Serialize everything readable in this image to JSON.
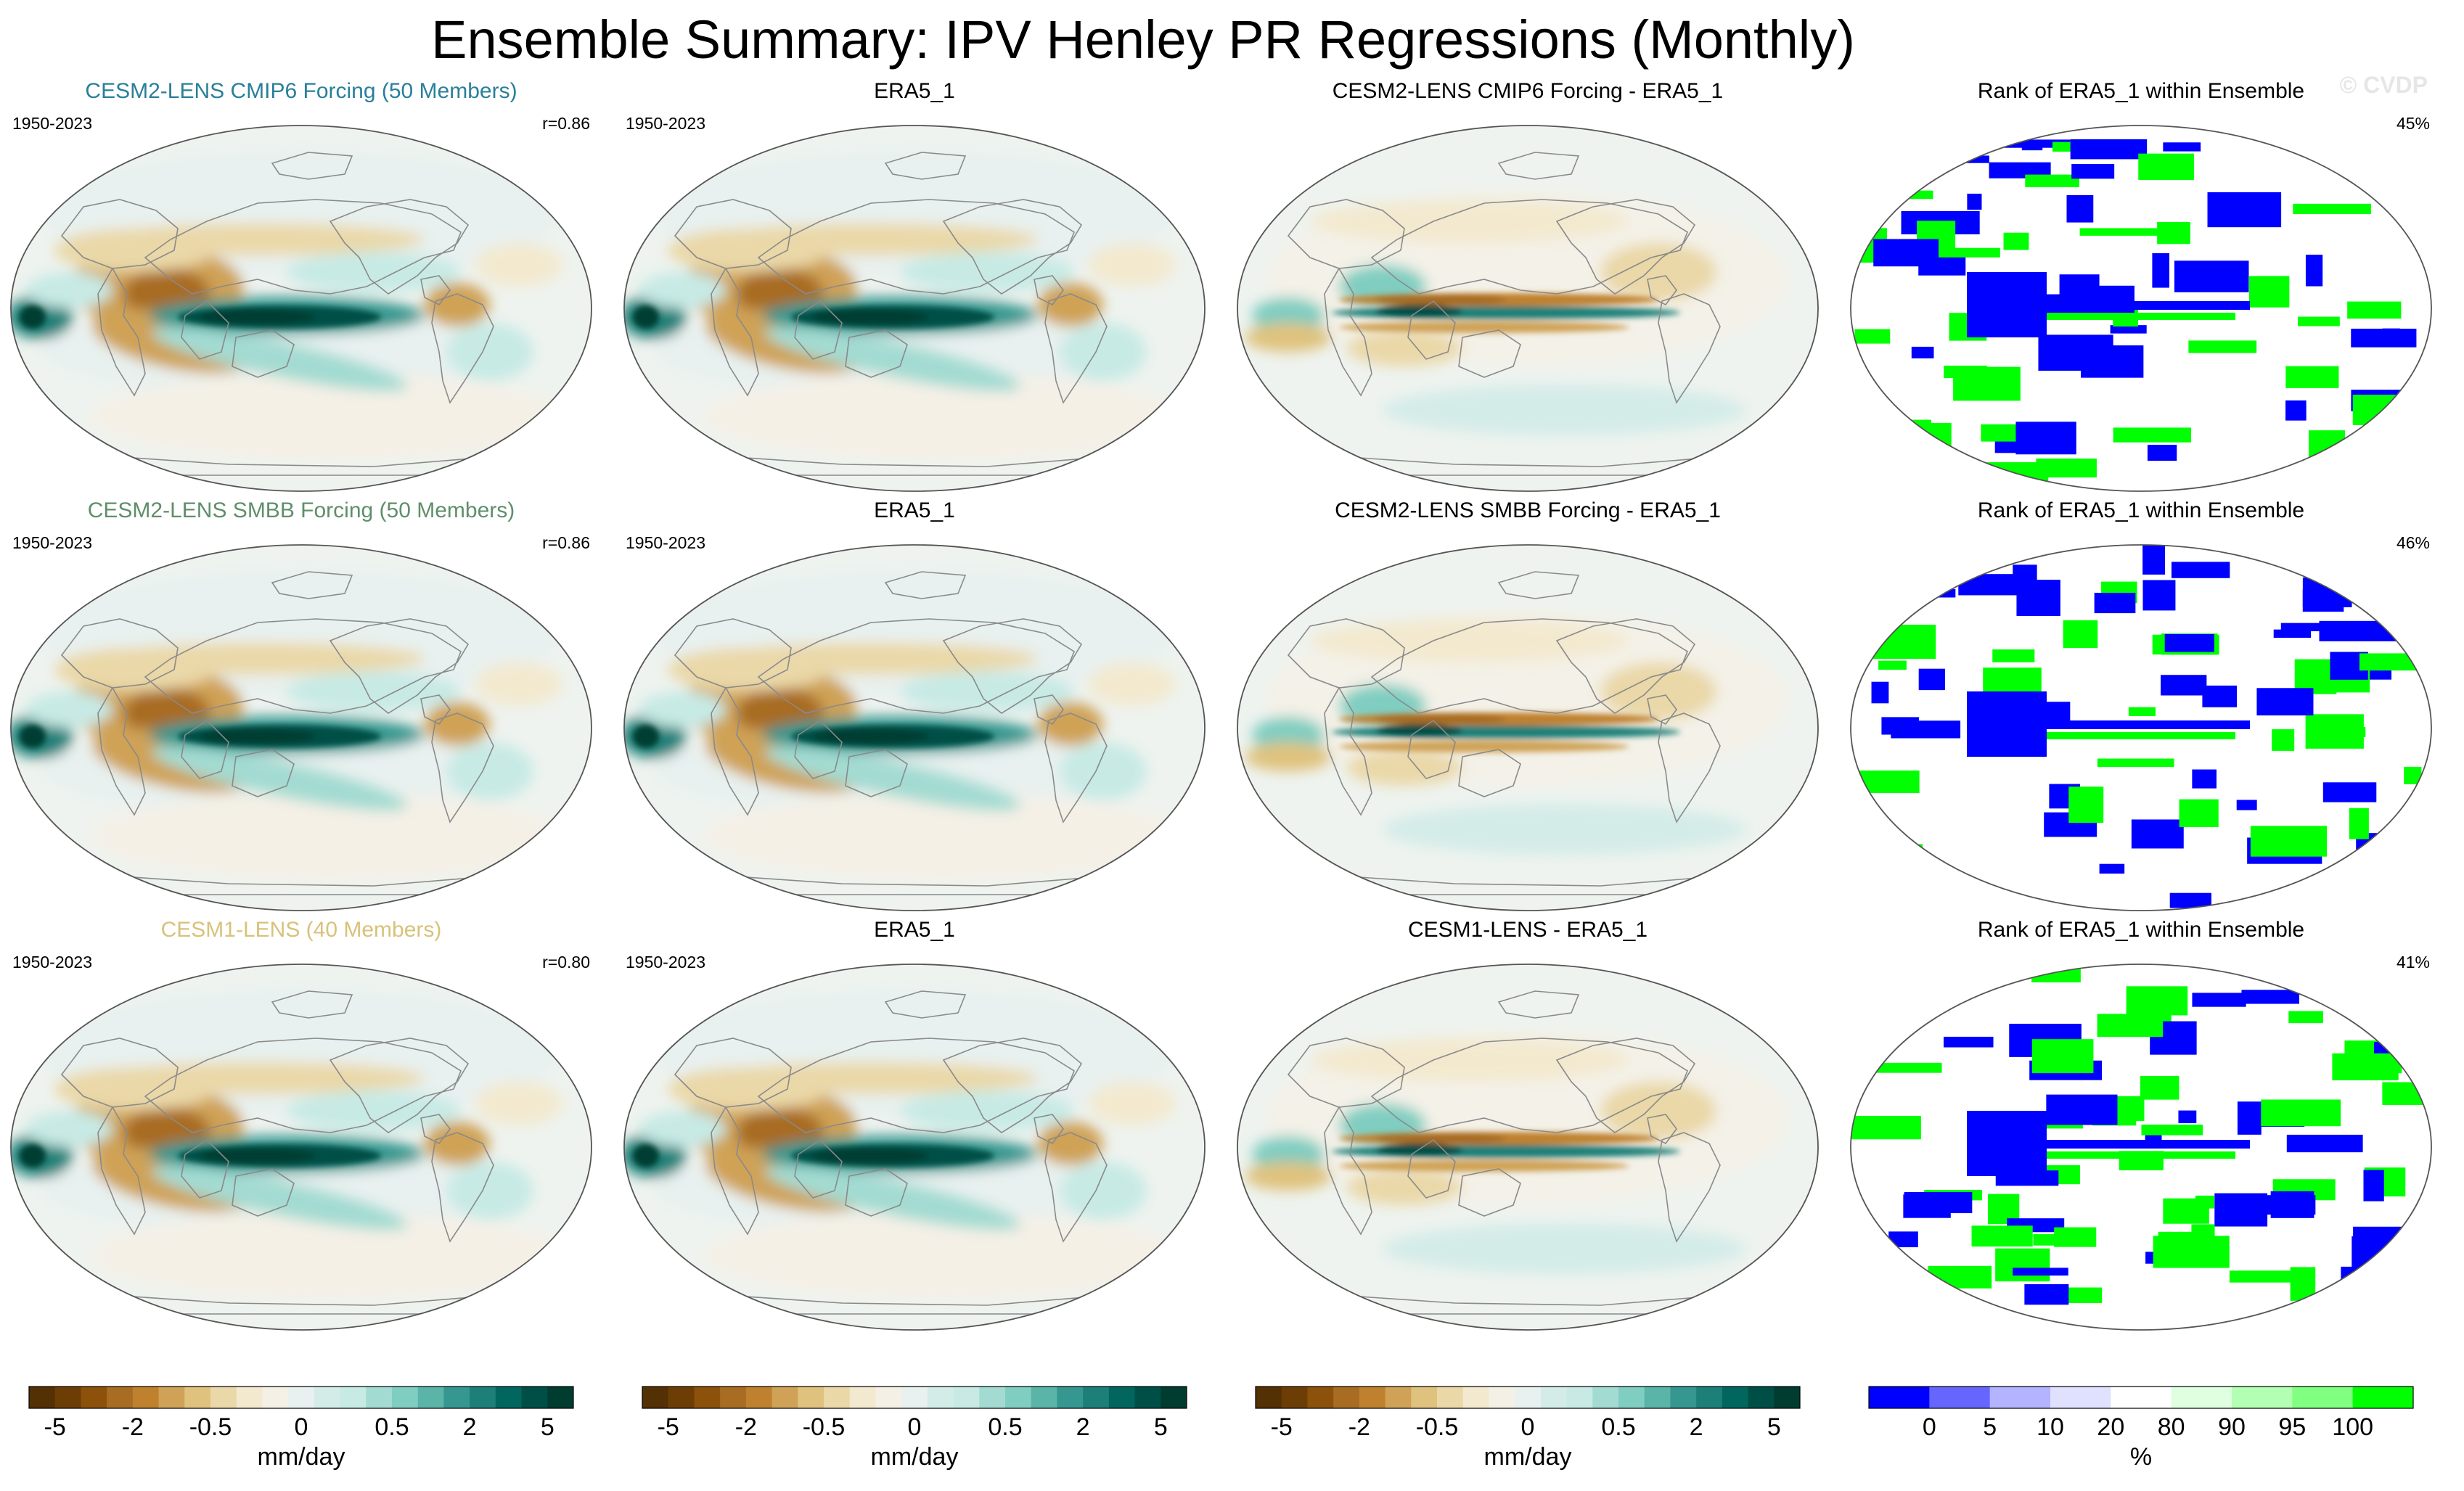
{
  "title": "Ensemble Summary: IPV Henley PR Regressions (Monthly)",
  "watermark": "© CVDP",
  "chart_data": {
    "type": "heatmap",
    "description_kind": "global map panels (Robinson projection), 3 rows x 4 columns",
    "rows": [
      {
        "ensemble_title": "CESM2-LENS CMIP6 Forcing (50 Members)",
        "ensemble_title_color": "#2a7f9a",
        "period": "1950-2023",
        "pattern_correlation": "r=0.86",
        "obs_title": "ERA5_1",
        "obs_period": "1950-2023",
        "diff_title": "CESM2-LENS CMIP6 Forcing - ERA5_1",
        "rank_title": "Rank of ERA5_1 within Ensemble",
        "rank_percent": "45%"
      },
      {
        "ensemble_title": "CESM2-LENS SMBB Forcing (50 Members)",
        "ensemble_title_color": "#5f8f6a",
        "period": "1950-2023",
        "pattern_correlation": "r=0.86",
        "obs_title": "ERA5_1",
        "obs_period": "1950-2023",
        "diff_title": "CESM2-LENS SMBB Forcing - ERA5_1",
        "rank_title": "Rank of ERA5_1 within Ensemble",
        "rank_percent": "46%"
      },
      {
        "ensemble_title": "CESM1-LENS (40 Members)",
        "ensemble_title_color": "#d8c27a",
        "period": "1950-2023",
        "pattern_correlation": "r=0.80",
        "obs_title": "ERA5_1",
        "obs_period": "1950-2023",
        "diff_title": "CESM1-LENS - ERA5_1",
        "rank_title": "Rank of ERA5_1 within Ensemble",
        "rank_percent": "41%"
      }
    ],
    "colorbars": [
      {
        "units": "mm/day",
        "ticks": [
          "-5",
          "-2",
          "-0.5",
          "0",
          "0.5",
          "2",
          "5"
        ],
        "colors": [
          "#543005",
          "#6d3d06",
          "#8c510a",
          "#a86c22",
          "#bf812d",
          "#cfa257",
          "#dfc27d",
          "#ead8a8",
          "#f3e9cf",
          "#f5f0e6",
          "#e8f1ef",
          "#d4ece8",
          "#c7eae5",
          "#a3dbd2",
          "#80cdc1",
          "#5ab4a8",
          "#35978f",
          "#1d8078",
          "#01665e",
          "#004f46",
          "#003c30"
        ]
      },
      {
        "units": "mm/day",
        "ticks": [
          "-5",
          "-2",
          "-0.5",
          "0",
          "0.5",
          "2",
          "5"
        ],
        "colors": [
          "#543005",
          "#6d3d06",
          "#8c510a",
          "#a86c22",
          "#bf812d",
          "#cfa257",
          "#dfc27d",
          "#ead8a8",
          "#f3e9cf",
          "#f5f0e6",
          "#e8f1ef",
          "#d4ece8",
          "#c7eae5",
          "#a3dbd2",
          "#80cdc1",
          "#5ab4a8",
          "#35978f",
          "#1d8078",
          "#01665e",
          "#004f46",
          "#003c30"
        ]
      },
      {
        "units": "mm/day",
        "ticks": [
          "-5",
          "-2",
          "-0.5",
          "0",
          "0.5",
          "2",
          "5"
        ],
        "colors": [
          "#543005",
          "#6d3d06",
          "#8c510a",
          "#a86c22",
          "#bf812d",
          "#cfa257",
          "#dfc27d",
          "#ead8a8",
          "#f3e9cf",
          "#f5f0e6",
          "#e8f1ef",
          "#d4ece8",
          "#c7eae5",
          "#a3dbd2",
          "#80cdc1",
          "#5ab4a8",
          "#35978f",
          "#1d8078",
          "#01665e",
          "#004f46",
          "#003c30"
        ]
      },
      {
        "units": "%",
        "ticks": [
          "0",
          "5",
          "10",
          "20",
          "80",
          "90",
          "95",
          "100"
        ],
        "colors": [
          "#0000ff",
          "#6666ff",
          "#b3b3ff",
          "#e0e0ff",
          "#ffffff",
          "#e0ffe0",
          "#b3ffb3",
          "#80ff80",
          "#00ff00"
        ]
      }
    ]
  },
  "colors": {
    "land_outline": "#8a8a8a",
    "ocean_base": "#f4efe4",
    "rank_blue": "#0000ff",
    "rank_green": "#00ff00"
  }
}
